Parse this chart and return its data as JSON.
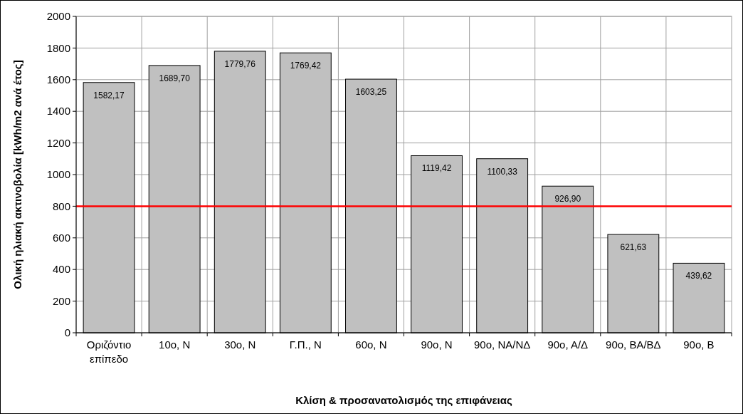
{
  "chart_data": {
    "type": "bar",
    "xlabel": "Κλίση & προσανατολισμός της επιφάνειας",
    "ylabel": "Ολική ηλιακή ακτινοβολία [kWh/m2 ανά έτος]",
    "categories": [
      "Οριζόντιο επίπεδο",
      "10ο, Ν",
      "30ο, Ν",
      "Γ.Π., Ν",
      "60ο, Ν",
      "90ο, Ν",
      "90ο, ΝΑ/ΝΔ",
      "90ο, Α/Δ",
      "90ο, ΒΑ/ΒΔ",
      "90ο, Β"
    ],
    "values": [
      1582.17,
      1689.7,
      1779.76,
      1769.42,
      1603.25,
      1119.42,
      1100.33,
      926.9,
      621.63,
      439.62
    ],
    "value_labels": [
      "1582,17",
      "1689,70",
      "1779,76",
      "1769,42",
      "1603,25",
      "1119,42",
      "1100,33",
      "926,90",
      "621,63",
      "439,62"
    ],
    "color": "#c0c0c0",
    "ylim": [
      0,
      2000
    ],
    "yticks": [
      0,
      200,
      400,
      600,
      800,
      1000,
      1200,
      1400,
      1600,
      1800,
      2000
    ],
    "grid": true,
    "ref_lines": [
      {
        "axis": "y",
        "value": 800,
        "color": "#ff0000"
      }
    ]
  }
}
